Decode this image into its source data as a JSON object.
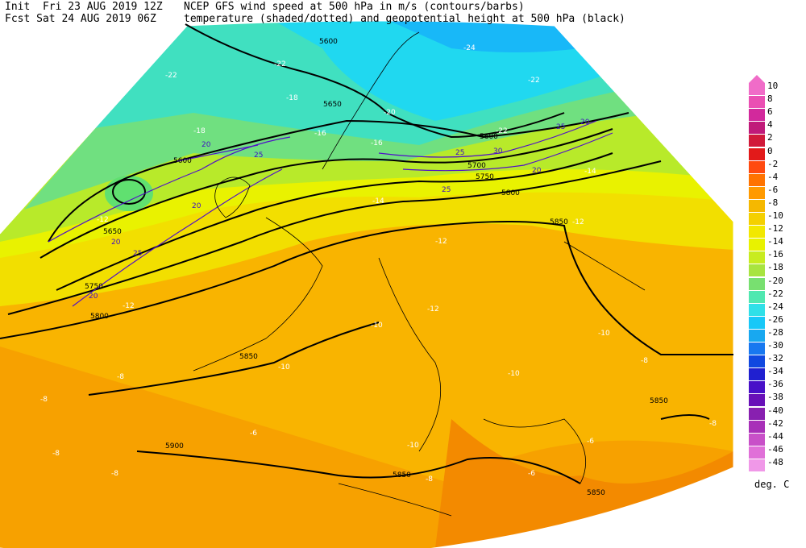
{
  "header": {
    "init": "Init  Fri 23 AUG 2019 12Z",
    "fcst": "Fcst Sat 24 AUG 2019 06Z",
    "title1": "NCEP GFS wind speed at 500 hPa in m/s (contours/barbs)",
    "title2": "temperature (shaded/dotted) and geopotential height at 500 hPa (black)"
  },
  "colorbar": {
    "unit": "deg. C",
    "levels": [
      "10",
      "8",
      "6",
      "4",
      "2",
      "0",
      "-2",
      "-4",
      "-6",
      "-8",
      "-10",
      "-12",
      "-14",
      "-16",
      "-18",
      "-20",
      "-22",
      "-24",
      "-26",
      "-28",
      "-30",
      "-32",
      "-34",
      "-36",
      "-38",
      "-40",
      "-42",
      "-44",
      "-46",
      "-48"
    ],
    "colors": [
      "#f06cc8",
      "#ea4fb3",
      "#d2299c",
      "#c01a7a",
      "#d11a3a",
      "#e21a1a",
      "#ff4a10",
      "#ff7300",
      "#ff9a00",
      "#f5b800",
      "#f4d000",
      "#f2e800",
      "#e8f200",
      "#c8ec20",
      "#a8e440",
      "#78e070",
      "#50e8b0",
      "#30e0e8",
      "#18c8f8",
      "#18a8f0",
      "#1878f0",
      "#1048e0",
      "#2020d0",
      "#4810c8",
      "#6810b8",
      "#8820b0",
      "#a830b8",
      "#c850c8",
      "#e070d8",
      "#f098e8"
    ]
  },
  "height_labels": [
    "5600",
    "5650",
    "5600",
    "5650",
    "5600",
    "5700",
    "5750",
    "5800",
    "5750",
    "5800",
    "5850",
    "5850",
    "5900",
    "5850",
    "5850",
    "5850"
  ],
  "wind_labels": [
    "20",
    "25",
    "20",
    "25",
    "30",
    "25",
    "20",
    "25",
    "20",
    "20",
    "25",
    "20"
  ],
  "temp_labels": [
    "-24",
    "-22",
    "-22",
    "-22",
    "-22",
    "-20",
    "-18",
    "-16",
    "-18",
    "-16",
    "-14",
    "-14",
    "-12",
    "-12",
    "-12",
    "-12",
    "-12",
    "-10",
    "-10",
    "-10",
    "-10",
    "-10",
    "-8",
    "-8",
    "-8",
    "-8",
    "-8",
    "-8",
    "-8",
    "-6",
    "-6",
    "-6"
  ]
}
